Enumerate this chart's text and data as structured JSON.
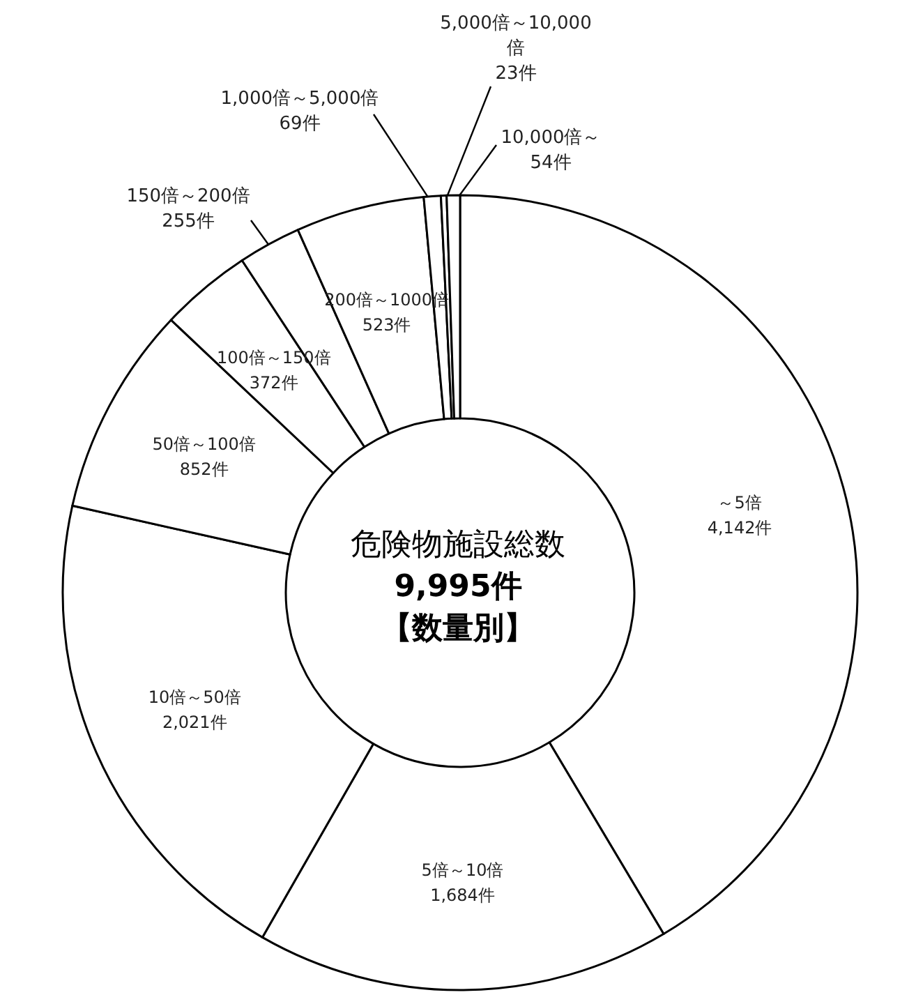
{
  "chart_data": {
    "type": "donut",
    "title": "危険物施設総数",
    "subtitle": "9,995件",
    "annotations": [
      "【数量別】"
    ],
    "categories": [
      "～5倍",
      "5倍～10倍",
      "10倍～50倍",
      "50倍～100倍",
      "100倍～150倍",
      "150倍～200倍",
      "200倍～1000倍",
      "1,000倍～5,000倍",
      "5,000倍～10,000倍",
      "10,000倍～"
    ],
    "values": [
      4142,
      1684,
      2021,
      852,
      372,
      255,
      523,
      69,
      23,
      54
    ],
    "value_labels": [
      "4,142件",
      "1,684件",
      "2,021件",
      "852件",
      "372件",
      "255件",
      "523件",
      "69件",
      "23件",
      "54件"
    ],
    "colors": [
      "#ffffff",
      "#ffffff",
      "#ffffff",
      "#ffffff",
      "#ffffff",
      "#ffffff",
      "#ffffff",
      "#ffffff",
      "#ffffff",
      "#ffffff"
    ],
    "legend": false
  }
}
